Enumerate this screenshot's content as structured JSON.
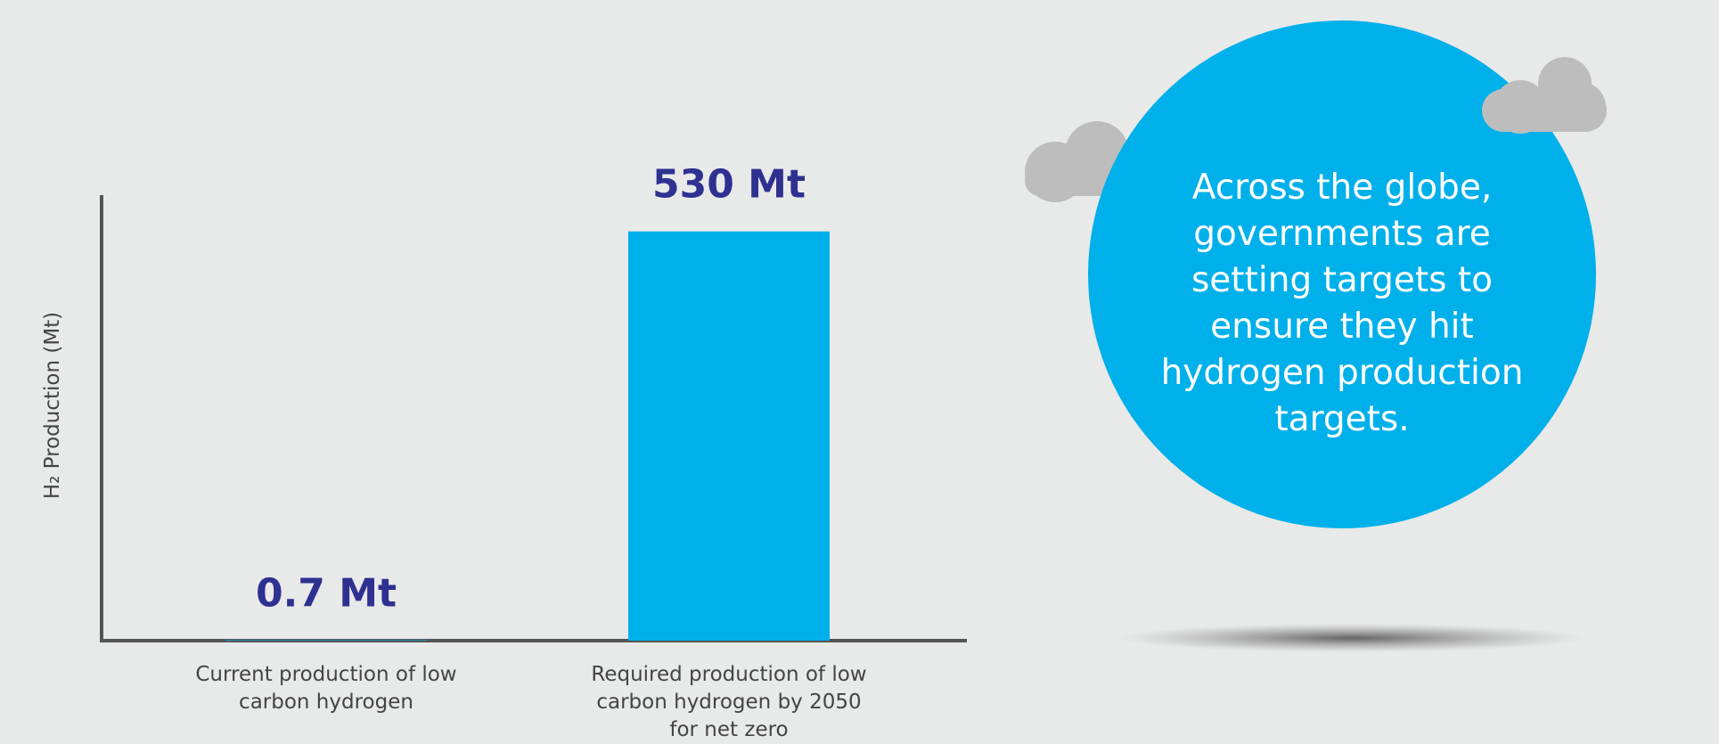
{
  "chart_data": {
    "type": "bar",
    "y_label": "H₂ Production (Mt)",
    "categories": [
      "Current production of low carbon hydrogen",
      "Required production of low carbon hydrogen by 2050 for net zero"
    ],
    "values": [
      0.7,
      530
    ],
    "value_labels": [
      "0.7 Mt",
      "530 Mt"
    ],
    "color": "#00b0ea",
    "ylim": [
      0,
      577
    ]
  },
  "callout": "Across the globe, governments are setting targets to ensure they hit hydrogen production targets."
}
